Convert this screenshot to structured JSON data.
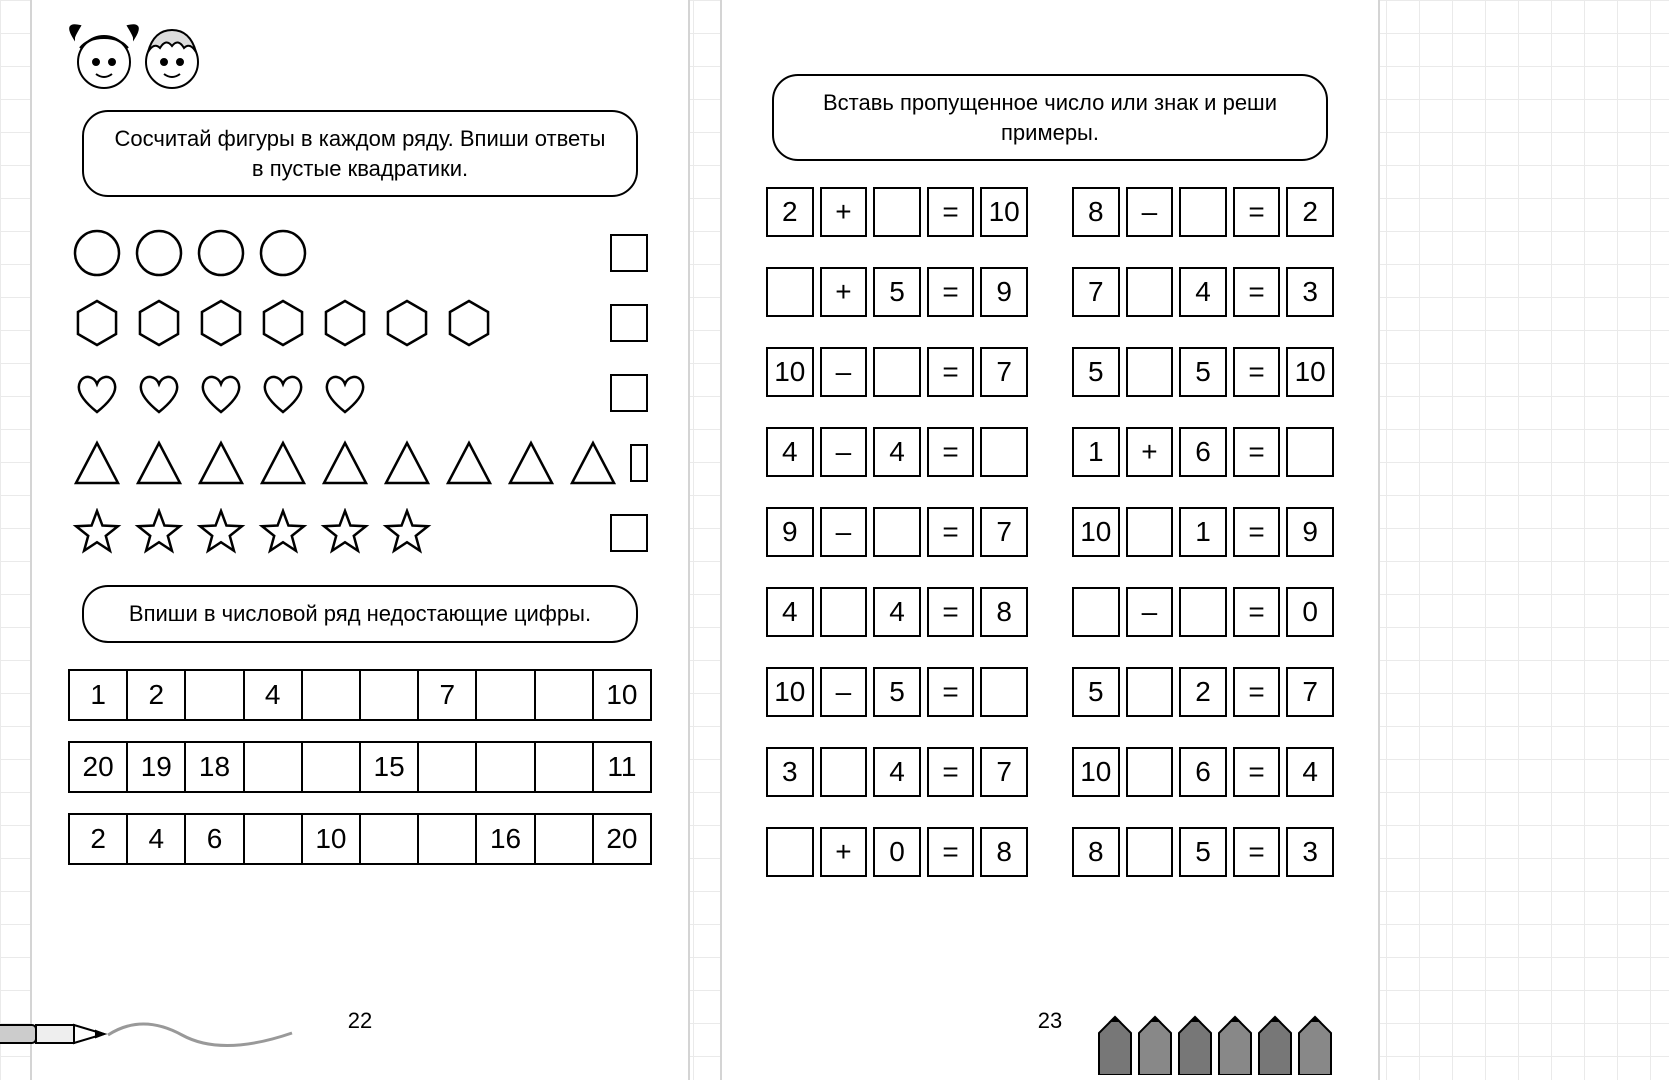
{
  "colors": {
    "stroke": "#000000",
    "bg": "#ffffff",
    "grid": "#eaeaea"
  },
  "typography": {
    "instruction_fontsize": 22,
    "number_fontsize": 28,
    "pagenum_fontsize": 22
  },
  "left": {
    "instruction1": "Сосчитай фигуры в каждом ряду. Впиши ответы в пустые квадратики.",
    "shape_rows": [
      {
        "shape": "circle",
        "count": 4,
        "size": 50
      },
      {
        "shape": "hexagon",
        "count": 7,
        "size": 50
      },
      {
        "shape": "heart",
        "count": 5,
        "size": 50
      },
      {
        "shape": "triangle",
        "count": 9,
        "size": 50
      },
      {
        "shape": "star",
        "count": 6,
        "size": 50
      }
    ],
    "instruction2": "Впиши в числовой ряд недостающие цифры.",
    "sequences": [
      [
        "1",
        "2",
        "",
        "4",
        "",
        "",
        "7",
        "",
        "",
        "10"
      ],
      [
        "20",
        "19",
        "18",
        "",
        "",
        "15",
        "",
        "",
        "",
        "11"
      ],
      [
        "2",
        "4",
        "6",
        "",
        "10",
        "",
        "",
        "16",
        "",
        "20"
      ]
    ],
    "page_number": "22"
  },
  "right": {
    "instruction": "Вставь пропущенное число или знак и реши примеры.",
    "columns": [
      [
        [
          "2",
          "+",
          "",
          "=",
          "10"
        ],
        [
          "",
          "+",
          "5",
          "=",
          "9"
        ],
        [
          "10",
          "–",
          "",
          "=",
          "7"
        ],
        [
          "4",
          "–",
          "4",
          "=",
          ""
        ],
        [
          "9",
          "–",
          "",
          "=",
          "7"
        ],
        [
          "4",
          "",
          "4",
          "=",
          "8"
        ],
        [
          "10",
          "–",
          "5",
          "=",
          ""
        ],
        [
          "3",
          "",
          "4",
          "=",
          "7"
        ],
        [
          "",
          "+",
          "0",
          "=",
          "8"
        ]
      ],
      [
        [
          "8",
          "–",
          "",
          "=",
          "2"
        ],
        [
          "7",
          "",
          "4",
          "=",
          "3"
        ],
        [
          "5",
          "",
          "5",
          "=",
          "10"
        ],
        [
          "1",
          "+",
          "6",
          "=",
          ""
        ],
        [
          "10",
          "",
          "1",
          "=",
          "9"
        ],
        [
          "",
          "–",
          "",
          "=",
          "0"
        ],
        [
          "5",
          "",
          "2",
          "=",
          "7"
        ],
        [
          "10",
          "",
          "6",
          "=",
          "4"
        ],
        [
          "8",
          "",
          "5",
          "=",
          "3"
        ]
      ]
    ],
    "page_number": "23"
  }
}
